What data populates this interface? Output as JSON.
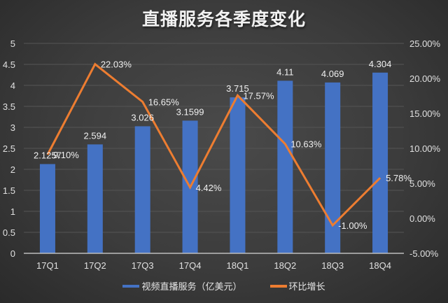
{
  "title": "直播服务各季度变化",
  "colors": {
    "bar": "#4472C4",
    "line": "#ED7D31",
    "background": "#3c3c3c",
    "grid": "#555555",
    "text": "#e0e0e0"
  },
  "legend": {
    "items": [
      {
        "label": "视频直播服务（亿美元）",
        "color": "#4472C4"
      },
      {
        "label": "环比增长",
        "color": "#ED7D31"
      }
    ]
  },
  "chart_data": {
    "type": "bar+line",
    "title": "直播服务各季度变化",
    "categories": [
      "17Q1",
      "17Q2",
      "17Q3",
      "17Q4",
      "18Q1",
      "18Q2",
      "18Q3",
      "18Q4"
    ],
    "series": [
      {
        "name": "视频直播服务（亿美元）",
        "type": "bar",
        "axis": "left",
        "values": [
          2.1257,
          2.594,
          3.026,
          3.1599,
          3.715,
          4.11,
          4.069,
          4.304
        ],
        "labels": [
          "2.1257",
          "2.594",
          "3.026",
          "3.1599",
          "3.715",
          "4.11",
          "4.069",
          "4.304"
        ]
      },
      {
        "name": "环比增长",
        "type": "line",
        "axis": "right",
        "values": [
          9.1,
          22.03,
          16.65,
          4.42,
          17.57,
          10.63,
          -1.0,
          5.78
        ],
        "labels": [
          "9.10%",
          "22.03%",
          "16.65%",
          "4.42%",
          "17.57%",
          "10.63%",
          "-1.00%",
          "5.78%"
        ]
      }
    ],
    "y_left": {
      "ylim": [
        0,
        5
      ],
      "ticks": [
        "0",
        "0.5",
        "1",
        "1.5",
        "2",
        "2.5",
        "3",
        "3.5",
        "4",
        "4.5",
        "5"
      ]
    },
    "y_right": {
      "ylim": [
        -5,
        25
      ],
      "ticks": [
        "-5.00%",
        "0.00%",
        "5.00%",
        "10.00%",
        "15.00%",
        "20.00%",
        "25.00%"
      ]
    },
    "grid": true,
    "legend_position": "bottom"
  }
}
